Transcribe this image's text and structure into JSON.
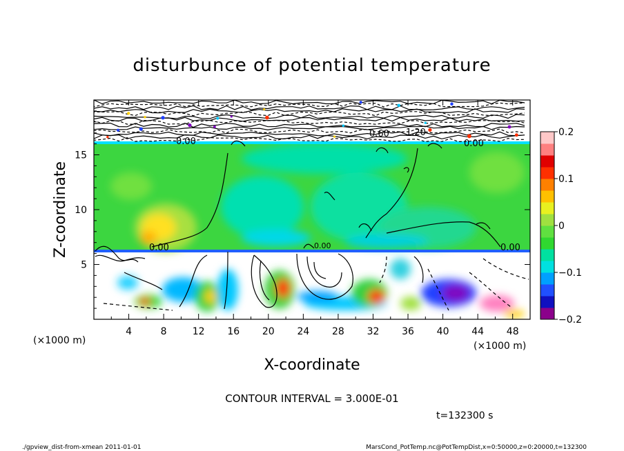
{
  "chart_data": {
    "type": "heatmap",
    "title": "disturbunce of potential temperature",
    "xlabel": "X-coordinate",
    "ylabel": "Z-coordinate",
    "x_unit": "(×1000 m)",
    "z_unit": "(×1000 m)",
    "xlim": [
      0,
      50
    ],
    "ylim": [
      0,
      20
    ],
    "x_ticks": [
      "4",
      "8",
      "12",
      "16",
      "20",
      "24",
      "28",
      "32",
      "36",
      "40",
      "44",
      "48"
    ],
    "x_tick_values": [
      4,
      8,
      12,
      16,
      20,
      24,
      28,
      32,
      36,
      40,
      44,
      48
    ],
    "y_ticks": [
      "5",
      "10",
      "15"
    ],
    "y_tick_values": [
      5,
      10,
      15
    ],
    "colorbar": {
      "ticks": [
        "0.2",
        "0.1",
        "0",
        "−0.1",
        "−0.2"
      ],
      "tick_values": [
        0.2,
        0.1,
        0,
        -0.1,
        -0.2
      ],
      "range": [
        -0.2,
        0.2
      ],
      "colors": [
        "#8b008b",
        "#1010c0",
        "#2050ff",
        "#00a0ff",
        "#00e0e0",
        "#00e0a0",
        "#30d830",
        "#60e040",
        "#a0e040",
        "#e8f020",
        "#ffc000",
        "#ff8000",
        "#ff3000",
        "#e00000",
        "#ff8080",
        "#ffc8c8"
      ]
    },
    "contour_labels": [
      "0.00",
      "0.00",
      "0.60",
      "1.20",
      "0.00",
      "0.00",
      "0.00"
    ],
    "contour_interval": "CONTOUR INTERVAL = 3.000E-01",
    "time": "t=132300 s",
    "footer_left": "./gpview_dist-from-xmean  2011-01-01",
    "footer_right": "MarsCond_PotTemp.nc@PotTempDist,x=0:50000,z=0:20000,t=132300"
  }
}
